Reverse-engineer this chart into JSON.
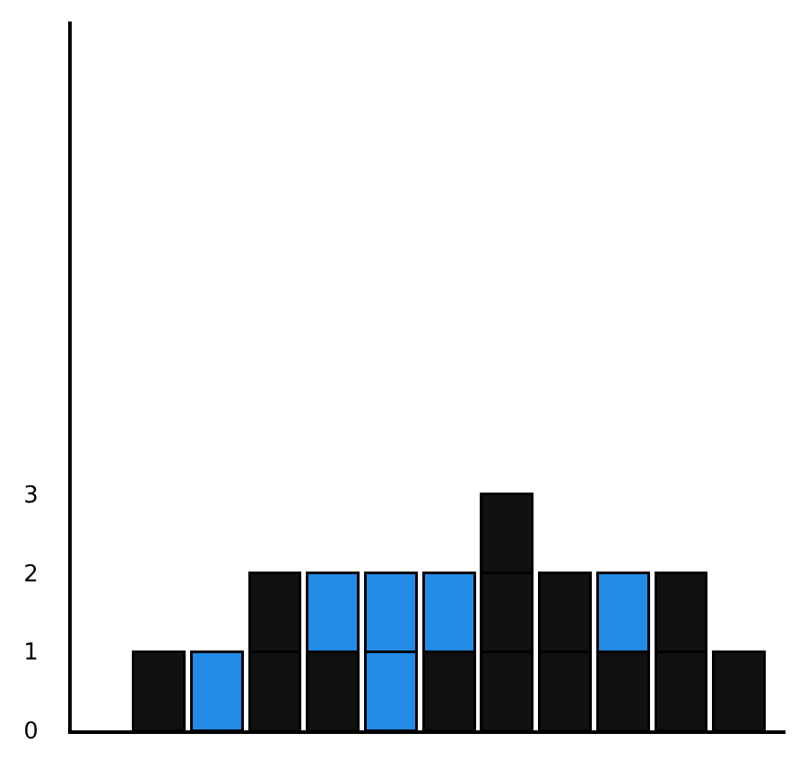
{
  "chart_data": {
    "type": "bar",
    "stacked": true,
    "categories": [
      null,
      null,
      null,
      null,
      null,
      null,
      null,
      null,
      null,
      null,
      null
    ],
    "series": [
      {
        "values": [
          1,
          1,
          1,
          1,
          1,
          1,
          1,
          1,
          1,
          1,
          1
        ],
        "colors": [
          "#111111",
          "#228be6",
          "#111111",
          "#111111",
          "#228be6",
          "#111111",
          "#111111",
          "#111111",
          "#111111",
          "#111111",
          "#111111"
        ]
      },
      {
        "values": [
          null,
          null,
          1,
          1,
          1,
          1,
          1,
          1,
          1,
          1,
          null
        ],
        "colors": [
          null,
          null,
          "#111111",
          "#228be6",
          "#228be6",
          "#228be6",
          "#111111",
          "#111111",
          "#228be6",
          "#111111",
          null
        ]
      },
      {
        "values": [
          null,
          null,
          null,
          null,
          null,
          null,
          1,
          null,
          null,
          null,
          null
        ],
        "colors": [
          null,
          null,
          null,
          null,
          null,
          null,
          "#111111",
          null,
          null,
          null,
          null
        ]
      }
    ],
    "ylim": [
      0,
      9
    ],
    "yticks": [
      0,
      1,
      2,
      3
    ],
    "tick_labels": "y"
  }
}
